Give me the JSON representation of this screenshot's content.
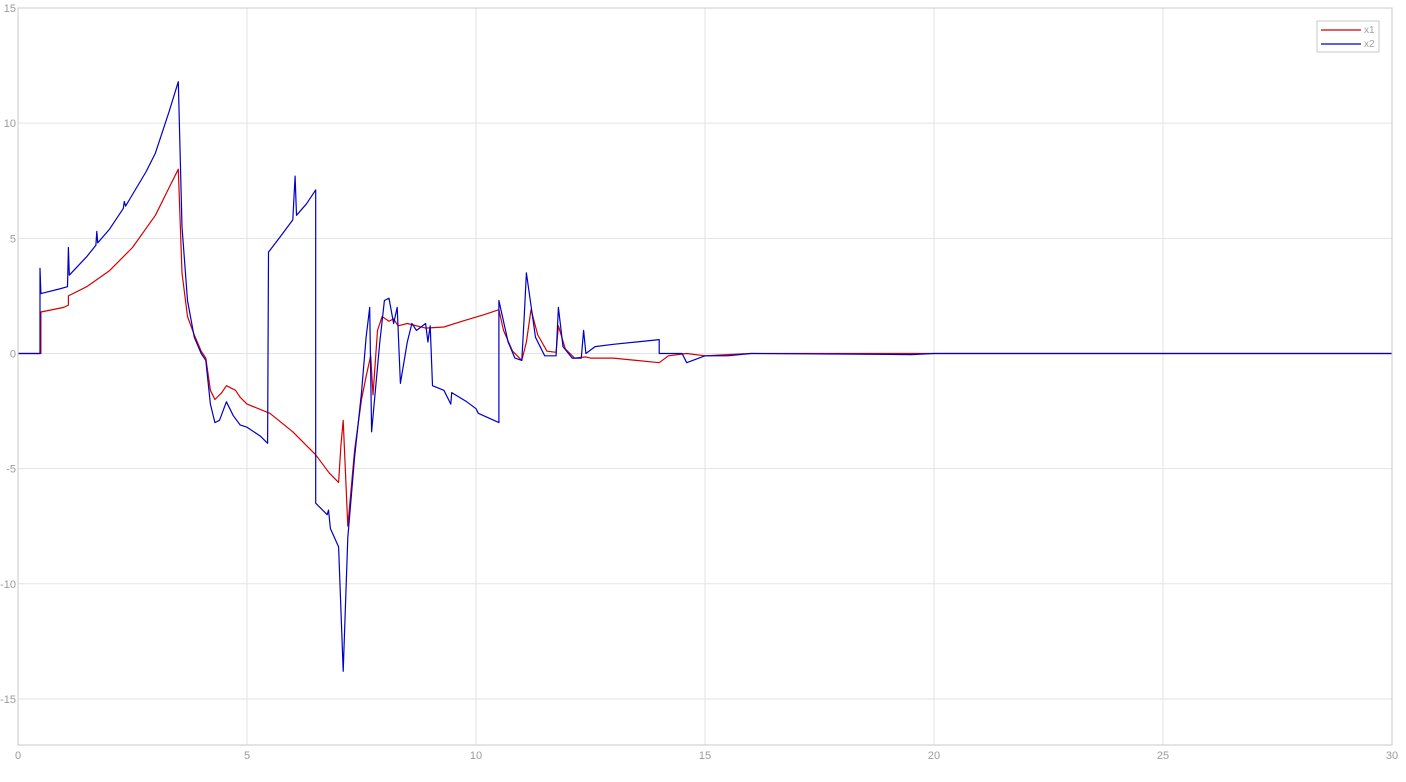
{
  "chart_data": {
    "type": "line",
    "title": "",
    "xlabel": "",
    "ylabel": "",
    "xlim": [
      0,
      30
    ],
    "ylim": [
      -17,
      15
    ],
    "xticks": [
      0,
      5,
      10,
      15,
      20,
      25,
      30
    ],
    "yticks": [
      -15,
      -10,
      -5,
      0,
      5,
      10,
      15
    ],
    "grid": true,
    "legend": {
      "position": "top-right"
    },
    "series": [
      {
        "name": "x1",
        "color": "#d40000",
        "points": [
          [
            0.0,
            0.0
          ],
          [
            0.5,
            0.0
          ],
          [
            0.5,
            1.8
          ],
          [
            1.0,
            2.0
          ],
          [
            1.1,
            2.1
          ],
          [
            1.1,
            2.5
          ],
          [
            1.5,
            2.9
          ],
          [
            2.0,
            3.6
          ],
          [
            2.5,
            4.6
          ],
          [
            3.0,
            6.0
          ],
          [
            3.35,
            7.4
          ],
          [
            3.5,
            8.0
          ],
          [
            3.58,
            3.5
          ],
          [
            3.7,
            1.6
          ],
          [
            3.85,
            0.8
          ],
          [
            4.0,
            0.1
          ],
          [
            4.1,
            -0.2
          ],
          [
            4.2,
            -1.6
          ],
          [
            4.3,
            -2.0
          ],
          [
            4.45,
            -1.7
          ],
          [
            4.55,
            -1.4
          ],
          [
            4.75,
            -1.6
          ],
          [
            4.85,
            -1.9
          ],
          [
            5.0,
            -2.2
          ],
          [
            5.5,
            -2.6
          ],
          [
            6.0,
            -3.4
          ],
          [
            6.5,
            -4.4
          ],
          [
            6.8,
            -5.2
          ],
          [
            7.0,
            -5.6
          ],
          [
            7.05,
            -4.0
          ],
          [
            7.1,
            -2.9
          ],
          [
            7.15,
            -5.2
          ],
          [
            7.2,
            -7.5
          ],
          [
            7.35,
            -4.2
          ],
          [
            7.5,
            -2.0
          ],
          [
            7.6,
            -1.0
          ],
          [
            7.7,
            -0.1
          ],
          [
            7.75,
            -1.8
          ],
          [
            7.85,
            1.0
          ],
          [
            7.95,
            1.6
          ],
          [
            8.1,
            1.4
          ],
          [
            8.2,
            1.5
          ],
          [
            8.3,
            1.2
          ],
          [
            8.5,
            1.3
          ],
          [
            8.9,
            1.1
          ],
          [
            9.3,
            1.15
          ],
          [
            9.7,
            1.4
          ],
          [
            10.2,
            1.7
          ],
          [
            10.5,
            1.9
          ],
          [
            10.6,
            1.0
          ],
          [
            10.8,
            0.1
          ],
          [
            11.0,
            -0.3
          ],
          [
            11.1,
            0.5
          ],
          [
            11.2,
            1.9
          ],
          [
            11.35,
            0.8
          ],
          [
            11.55,
            0.1
          ],
          [
            11.75,
            0.05
          ],
          [
            11.8,
            1.2
          ],
          [
            11.95,
            0.2
          ],
          [
            12.15,
            -0.2
          ],
          [
            12.4,
            -0.15
          ],
          [
            12.5,
            -0.2
          ],
          [
            13.0,
            -0.2
          ],
          [
            13.5,
            -0.3
          ],
          [
            14.0,
            -0.4
          ],
          [
            14.2,
            -0.1
          ],
          [
            14.6,
            0.0
          ],
          [
            15.0,
            -0.1
          ],
          [
            15.5,
            -0.05
          ],
          [
            16.0,
            0.0
          ],
          [
            20.0,
            0.0
          ],
          [
            30.0,
            0.0
          ]
        ]
      },
      {
        "name": "x2",
        "color": "#0000c8",
        "points": [
          [
            0.0,
            0.0
          ],
          [
            0.48,
            0.0
          ],
          [
            0.48,
            3.7
          ],
          [
            0.5,
            2.6
          ],
          [
            0.9,
            2.8
          ],
          [
            1.08,
            2.9
          ],
          [
            1.1,
            4.6
          ],
          [
            1.12,
            3.4
          ],
          [
            1.5,
            4.2
          ],
          [
            1.7,
            4.7
          ],
          [
            1.72,
            5.3
          ],
          [
            1.74,
            4.8
          ],
          [
            2.0,
            5.4
          ],
          [
            2.3,
            6.3
          ],
          [
            2.32,
            6.6
          ],
          [
            2.35,
            6.4
          ],
          [
            2.8,
            7.9
          ],
          [
            3.0,
            8.7
          ],
          [
            3.3,
            10.5
          ],
          [
            3.5,
            11.8
          ],
          [
            3.58,
            5.5
          ],
          [
            3.7,
            2.3
          ],
          [
            3.85,
            0.7
          ],
          [
            4.0,
            0.0
          ],
          [
            4.1,
            -0.3
          ],
          [
            4.2,
            -2.2
          ],
          [
            4.3,
            -3.0
          ],
          [
            4.4,
            -2.9
          ],
          [
            4.55,
            -2.1
          ],
          [
            4.7,
            -2.7
          ],
          [
            4.85,
            -3.1
          ],
          [
            5.0,
            -3.2
          ],
          [
            5.3,
            -3.6
          ],
          [
            5.45,
            -3.9
          ],
          [
            5.47,
            4.4
          ],
          [
            5.7,
            5.0
          ],
          [
            6.0,
            5.8
          ],
          [
            6.05,
            7.7
          ],
          [
            6.08,
            6.0
          ],
          [
            6.3,
            6.5
          ],
          [
            6.5,
            7.1
          ],
          [
            6.5,
            -6.5
          ],
          [
            6.75,
            -7.0
          ],
          [
            6.78,
            -6.8
          ],
          [
            6.82,
            -7.6
          ],
          [
            7.0,
            -8.4
          ],
          [
            7.1,
            -13.8
          ],
          [
            7.2,
            -8.0
          ],
          [
            7.35,
            -4.5
          ],
          [
            7.5,
            -1.7
          ],
          [
            7.6,
            0.7
          ],
          [
            7.68,
            2.0
          ],
          [
            7.72,
            -3.4
          ],
          [
            7.9,
            0.5
          ],
          [
            8.0,
            2.3
          ],
          [
            8.1,
            2.4
          ],
          [
            8.2,
            1.3
          ],
          [
            8.28,
            2.0
          ],
          [
            8.35,
            -1.3
          ],
          [
            8.5,
            0.5
          ],
          [
            8.6,
            1.3
          ],
          [
            8.7,
            1.0
          ],
          [
            8.9,
            1.3
          ],
          [
            8.95,
            0.5
          ],
          [
            9.0,
            1.2
          ],
          [
            9.05,
            -1.4
          ],
          [
            9.3,
            -1.6
          ],
          [
            9.45,
            -2.2
          ],
          [
            9.47,
            -1.7
          ],
          [
            9.8,
            -2.1
          ],
          [
            10.0,
            -2.4
          ],
          [
            10.05,
            -2.6
          ],
          [
            10.5,
            -3.0
          ],
          [
            10.5,
            2.3
          ],
          [
            10.7,
            0.5
          ],
          [
            10.85,
            -0.2
          ],
          [
            11.0,
            -0.3
          ],
          [
            11.05,
            1.5
          ],
          [
            11.1,
            3.5
          ],
          [
            11.3,
            0.7
          ],
          [
            11.5,
            -0.1
          ],
          [
            11.75,
            -0.1
          ],
          [
            11.8,
            2.0
          ],
          [
            11.9,
            0.3
          ],
          [
            12.1,
            -0.2
          ],
          [
            12.3,
            -0.2
          ],
          [
            12.35,
            1.0
          ],
          [
            12.4,
            0.0
          ],
          [
            12.6,
            0.3
          ],
          [
            13.0,
            0.4
          ],
          [
            13.5,
            0.5
          ],
          [
            14.0,
            0.6
          ],
          [
            14.0,
            0.0
          ],
          [
            14.5,
            0.0
          ],
          [
            14.6,
            -0.4
          ],
          [
            15.0,
            -0.1
          ],
          [
            15.5,
            -0.1
          ],
          [
            16.0,
            0.0
          ],
          [
            19.5,
            -0.05
          ],
          [
            20.0,
            0.0
          ],
          [
            30.0,
            0.0
          ]
        ]
      }
    ]
  }
}
